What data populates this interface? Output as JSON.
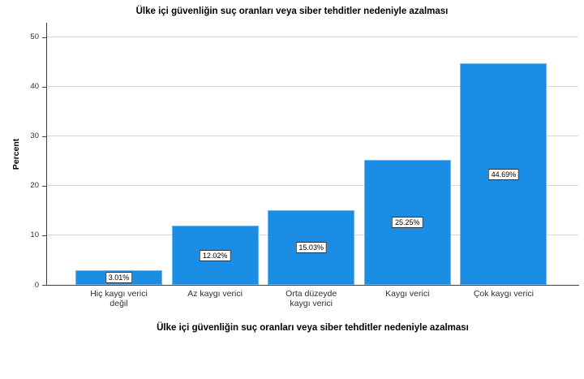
{
  "figure": {
    "title": "Ülke içi güvenliğin suç oranları veya siber tehditler nedeniyle azalması",
    "x_axis_title": "Ülke içi güvenliğin suç oranları veya siber tehditler nedeniyle azalması",
    "y_axis_title": "Percent"
  },
  "chart_data": {
    "type": "bar",
    "title": "Ülke içi güvenliğin suç oranları veya siber tehditler nedeniyle azalması",
    "xlabel": "Ülke içi güvenliğin suç oranları veya siber tehditler nedeniyle azalması",
    "ylabel": "Percent",
    "categories": [
      "Hiç kaygı verici değil",
      "Az kaygı verici",
      "Orta düzeyde kaygı verici",
      "Kaygı verici",
      "Çok kaygı verici"
    ],
    "category_lines": [
      [
        "Hiç kaygı verici",
        "değil"
      ],
      [
        "Az kaygı verici"
      ],
      [
        "Orta düzeyde",
        "kaygı verici"
      ],
      [
        "Kaygı verici"
      ],
      [
        "Çok kaygı verici"
      ]
    ],
    "values": [
      3.01,
      12.02,
      15.03,
      25.25,
      44.69
    ],
    "bar_labels": [
      "3.01%",
      "12.02%",
      "15.03%",
      "25.25%",
      "44.69%"
    ],
    "yticks": [
      0,
      10,
      20,
      30,
      40,
      50
    ],
    "ylim": [
      0,
      52.9
    ],
    "grid": true,
    "legend_position": "none",
    "colors": {
      "bar_fill": "#1b8de4",
      "bar_edge": "#6cb9f2",
      "gridline": "#d8d8d8",
      "axis": "#404040",
      "label_box_bg": "#ffffff",
      "label_box_border": "#333333",
      "tick_text": "#2f2f2f",
      "title_text": "#000000"
    }
  }
}
